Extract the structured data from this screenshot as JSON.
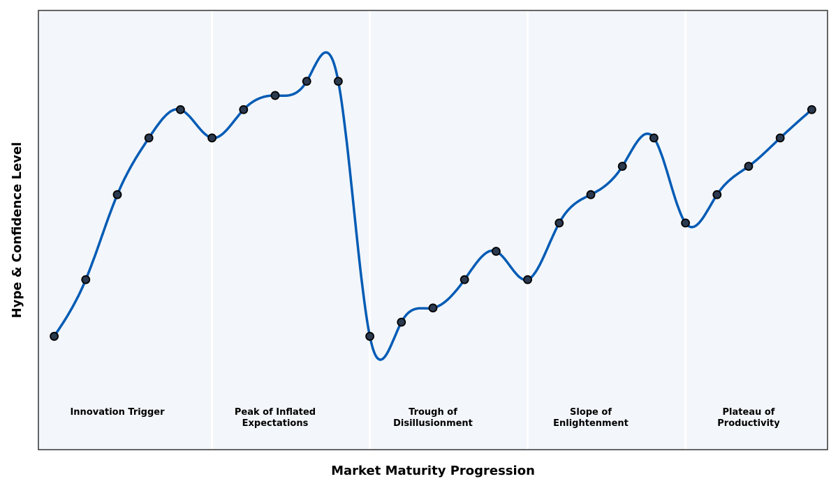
{
  "chart_data": {
    "type": "line",
    "title": "",
    "xlabel": "Market Maturity Progression",
    "ylabel": "Hype & Confidence Level",
    "x": [
      0,
      1,
      2,
      3,
      4,
      5,
      6,
      7,
      8,
      9,
      10,
      11,
      12,
      13,
      14,
      15,
      16,
      17,
      18,
      19,
      20,
      21,
      22,
      23,
      24
    ],
    "values": [
      20,
      40,
      70,
      90,
      100,
      90,
      100,
      105,
      110,
      110,
      20,
      25,
      30,
      40,
      50,
      40,
      60,
      70,
      80,
      90,
      60,
      70,
      80,
      90,
      100
    ],
    "xlim": [
      -0.5,
      24.5
    ],
    "ylim": [
      -20,
      135
    ],
    "grid": false,
    "phase_dividers": [
      5,
      10,
      15,
      20
    ],
    "phases": [
      {
        "label": [
          "Innovation Trigger"
        ],
        "x": 2
      },
      {
        "label": [
          "Peak of Inflated",
          "Expectations"
        ],
        "x": 7
      },
      {
        "label": [
          "Trough of",
          "Disillusionment"
        ],
        "x": 12
      },
      {
        "label": [
          "Slope of",
          "Enlightenment"
        ],
        "x": 17
      },
      {
        "label": [
          "Plateau of",
          "Productivity"
        ],
        "x": 22
      }
    ],
    "colors": {
      "line": "#005bb5",
      "marker": "#2b3a4f",
      "marker_edge": "#000000",
      "background": "#f3f6fa",
      "divider": "#ffffff"
    }
  }
}
